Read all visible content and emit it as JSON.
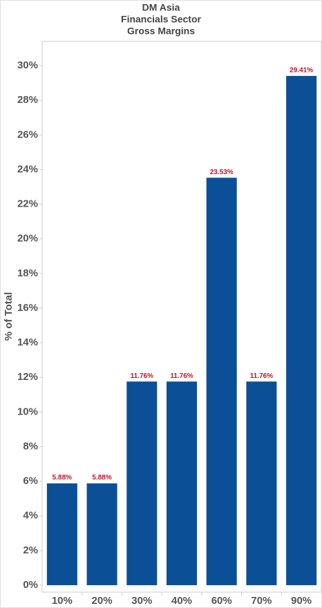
{
  "chart_data": {
    "type": "bar",
    "title": [
      "DM Asia",
      "Financials Sector",
      "Gross Margins"
    ],
    "y_label": "% of Total",
    "categories": [
      "10%",
      "20%",
      "30%",
      "40%",
      "60%",
      "70%",
      "90%"
    ],
    "values": [
      5.88,
      5.88,
      11.76,
      11.76,
      23.53,
      11.76,
      29.41
    ],
    "value_labels": [
      "5.88%",
      "5.88%",
      "11.76%",
      "11.76%",
      "23.53%",
      "11.76%",
      "29.41%"
    ],
    "color": "#0b4f96",
    "label_color": "#c8102e",
    "ylim": [
      -0.4,
      31.4
    ],
    "yticks": [
      {
        "value": 0,
        "label": "0%"
      },
      {
        "value": 2,
        "label": "2%"
      },
      {
        "value": 4,
        "label": "4%"
      },
      {
        "value": 6,
        "label": "6%"
      },
      {
        "value": 8,
        "label": "8%"
      },
      {
        "value": 10,
        "label": "10%"
      },
      {
        "value": 12,
        "label": "12%"
      },
      {
        "value": 14,
        "label": "14%"
      },
      {
        "value": 16,
        "label": "16%"
      },
      {
        "value": 18,
        "label": "18%"
      },
      {
        "value": 20,
        "label": "20%"
      },
      {
        "value": 22,
        "label": "22%"
      },
      {
        "value": 24,
        "label": "24%"
      },
      {
        "value": 26,
        "label": "26%"
      },
      {
        "value": 28,
        "label": "28%"
      },
      {
        "value": 30,
        "label": "30%"
      }
    ],
    "grid": false
  }
}
